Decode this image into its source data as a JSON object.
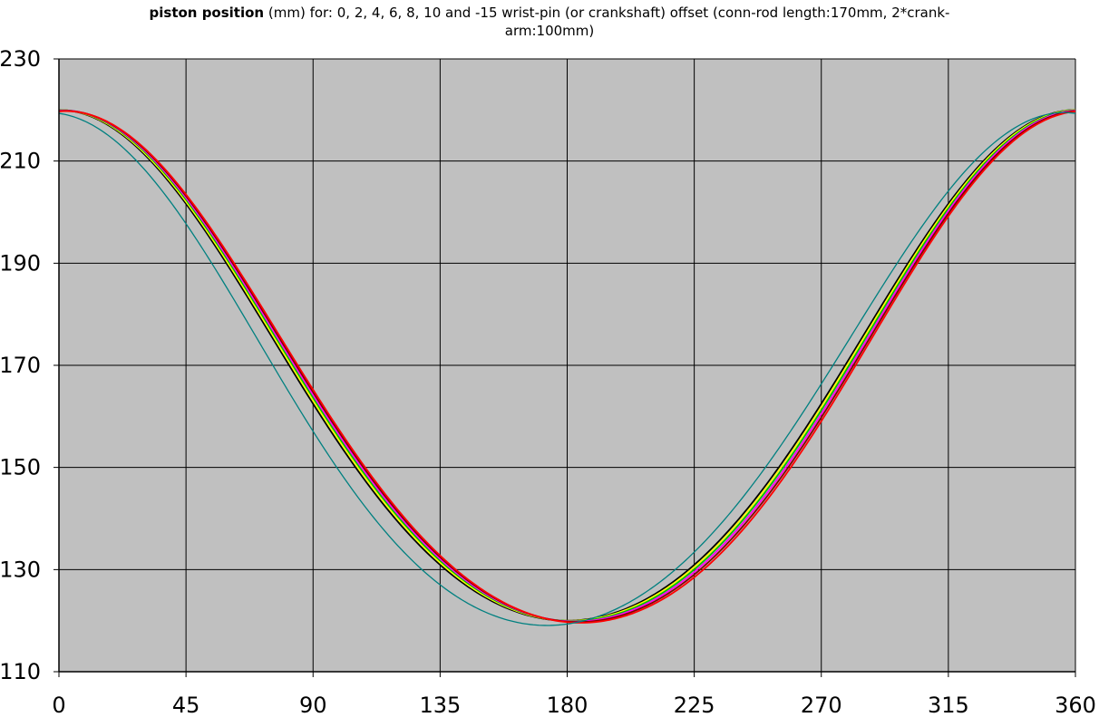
{
  "chart_data": {
    "type": "line",
    "title_bold": "piston position",
    "title_rest_line1": " (mm) for: 0, 2, 4, 6, 8, 10 and -15 wrist-pin (or crankshaft) offset (conn-rod length:170mm, 2*crank-",
    "title_line2": "arm:100mm)",
    "xlabel": "",
    "ylabel": "",
    "xlim": [
      0,
      360
    ],
    "ylim": [
      110,
      230
    ],
    "x_ticks": [
      "0",
      "45",
      "90",
      "135",
      "180",
      "225",
      "270",
      "315",
      "360"
    ],
    "y_ticks": [
      "110",
      "130",
      "150",
      "170",
      "190",
      "210",
      "230"
    ],
    "grid": true,
    "plot_background": "#c0c0c0",
    "conn_rod_length_mm": 170,
    "crank_radius_mm": 50,
    "offsets_mm": [
      0,
      2,
      4,
      6,
      8,
      10,
      -15
    ],
    "series_colors": [
      "#000000",
      "#ffff00",
      "#00c000",
      "#ff00ff",
      "#800000",
      "#ff0000",
      "#008080"
    ],
    "legend": "none"
  }
}
